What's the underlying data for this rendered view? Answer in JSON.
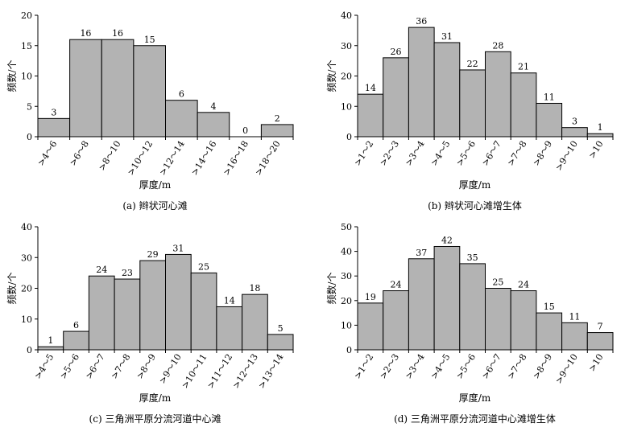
{
  "chart_data": [
    {
      "type": "bar",
      "caption": "(a) 辫状河心滩",
      "xlabel": "厚度/m",
      "ylabel": "频数/个",
      "ylim": [
        0,
        20
      ],
      "yticks": [
        0,
        5,
        10,
        15,
        20
      ],
      "categories": [
        ">4～6",
        ">6～8",
        ">8～10",
        ">10～12",
        ">12～14",
        ">14～16",
        ">16～18",
        ">18～20"
      ],
      "values": [
        3,
        16,
        16,
        15,
        6,
        4,
        0,
        2
      ]
    },
    {
      "type": "bar",
      "caption": "(b) 辫状河心滩增生体",
      "xlabel": "厚度/m",
      "ylabel": "频数/个",
      "ylim": [
        0,
        40
      ],
      "yticks": [
        0,
        10,
        20,
        30,
        40
      ],
      "categories": [
        ">1～2",
        ">2～3",
        ">3～4",
        ">4～5",
        ">5～6",
        ">6～7",
        ">7～8",
        ">8～9",
        ">9～10",
        ">10"
      ],
      "values": [
        14,
        26,
        36,
        31,
        22,
        28,
        21,
        11,
        3,
        1
      ]
    },
    {
      "type": "bar",
      "caption": "(c) 三角洲平原分流河道中心滩",
      "xlabel": "厚度/m",
      "ylabel": "频数/个",
      "ylim": [
        0,
        40
      ],
      "yticks": [
        0,
        10,
        20,
        30,
        40
      ],
      "categories": [
        ">4～5",
        ">5～6",
        ">6～7",
        ">7～8",
        ">8～9",
        ">9～10",
        ">10～11",
        ">11～12",
        ">12～13",
        ">13～14"
      ],
      "values": [
        1,
        6,
        24,
        23,
        29,
        31,
        25,
        14,
        18,
        5
      ]
    },
    {
      "type": "bar",
      "caption": "(d) 三角洲平原分流河道中心滩增生体",
      "xlabel": "厚度/m",
      "ylabel": "频数/个",
      "ylim": [
        0,
        50
      ],
      "yticks": [
        0,
        10,
        20,
        30,
        40,
        50
      ],
      "categories": [
        ">1～2",
        ">2～3",
        ">3～4",
        ">4～5",
        ">5～6",
        ">6～7",
        ">7～8",
        ">8～9",
        ">9～10",
        ">10"
      ],
      "values": [
        19,
        24,
        37,
        42,
        35,
        25,
        24,
        15,
        11,
        7
      ]
    }
  ]
}
